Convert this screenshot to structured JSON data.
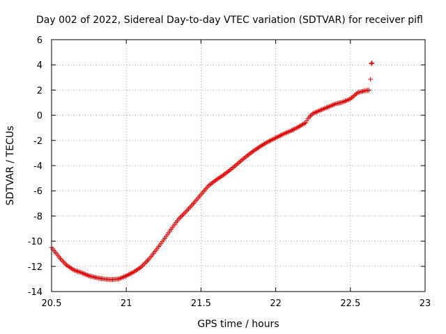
{
  "chart_data": {
    "type": "scatter",
    "title": "Day 002 of 2022, Sidereal Day-to-day VTEC variation (SDTVAR) for receiver pifl",
    "xlabel": "GPS time / hours",
    "ylabel": "SDTVAR / TECUs",
    "xlim": [
      20.5,
      23
    ],
    "ylim": [
      -14,
      6
    ],
    "xticks": [
      "20.5",
      "21",
      "21.5",
      "22",
      "22.5",
      "23"
    ],
    "yticks": [
      "-14",
      "-12",
      "-10",
      "-8",
      "-6",
      "-4",
      "-2",
      "0",
      "2",
      "4",
      "6"
    ],
    "grid": true,
    "marker": "+",
    "color": "#e00000",
    "sample_interval_hours": 0.00833,
    "curve_points": [
      [
        20.5,
        -10.5
      ],
      [
        20.56,
        -11.4
      ],
      [
        20.6,
        -11.9
      ],
      [
        20.65,
        -12.3
      ],
      [
        20.7,
        -12.5
      ],
      [
        20.75,
        -12.75
      ],
      [
        20.8,
        -12.9
      ],
      [
        20.85,
        -13.0
      ],
      [
        20.9,
        -13.05
      ],
      [
        20.95,
        -13.0
      ],
      [
        21.0,
        -12.75
      ],
      [
        21.05,
        -12.45
      ],
      [
        21.1,
        -12.05
      ],
      [
        21.15,
        -11.45
      ],
      [
        21.2,
        -10.7
      ],
      [
        21.25,
        -9.9
      ],
      [
        21.3,
        -9.05
      ],
      [
        21.35,
        -8.25
      ],
      [
        21.4,
        -7.65
      ],
      [
        21.45,
        -7.0
      ],
      [
        21.5,
        -6.3
      ],
      [
        21.55,
        -5.6
      ],
      [
        21.6,
        -5.15
      ],
      [
        21.65,
        -4.75
      ],
      [
        21.7,
        -4.3
      ],
      [
        21.75,
        -3.8
      ],
      [
        21.8,
        -3.3
      ],
      [
        21.85,
        -2.85
      ],
      [
        21.9,
        -2.45
      ],
      [
        21.95,
        -2.1
      ],
      [
        22.0,
        -1.8
      ],
      [
        22.05,
        -1.5
      ],
      [
        22.1,
        -1.25
      ],
      [
        22.15,
        -0.95
      ],
      [
        22.2,
        -0.6
      ],
      [
        22.22,
        -0.2
      ],
      [
        22.25,
        0.15
      ],
      [
        22.3,
        0.4
      ],
      [
        22.35,
        0.65
      ],
      [
        22.4,
        0.9
      ],
      [
        22.45,
        1.05
      ],
      [
        22.5,
        1.3
      ],
      [
        22.55,
        1.8
      ],
      [
        22.6,
        1.95
      ],
      [
        22.63,
        2.0
      ]
    ],
    "extra_points": [
      [
        22.635,
        2.85
      ],
      [
        22.64,
        4.1
      ],
      [
        22.645,
        4.15
      ]
    ]
  }
}
